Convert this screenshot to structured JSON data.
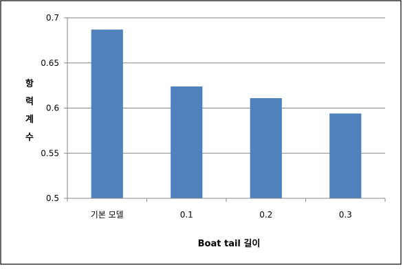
{
  "chart_data": {
    "type": "bar",
    "title": "",
    "categories": [
      "기본 모델",
      "0.1",
      "0.2",
      "0.3"
    ],
    "values": [
      0.687,
      0.624,
      0.611,
      0.594
    ],
    "xlabel": "Boat tail 길이",
    "ylabel": "항력계수",
    "ylabel_chars": [
      "항",
      "력",
      "계",
      "수"
    ],
    "ylim": [
      0.5,
      0.7
    ],
    "yticks": [
      "0.5",
      "0.55",
      "0.6",
      "0.65",
      "0.7"
    ],
    "grid": true,
    "legend": "none",
    "bar_color": "#4f81bd",
    "grid_color": "#868686",
    "axis_color": "#868686",
    "frame_color": "#000000"
  }
}
